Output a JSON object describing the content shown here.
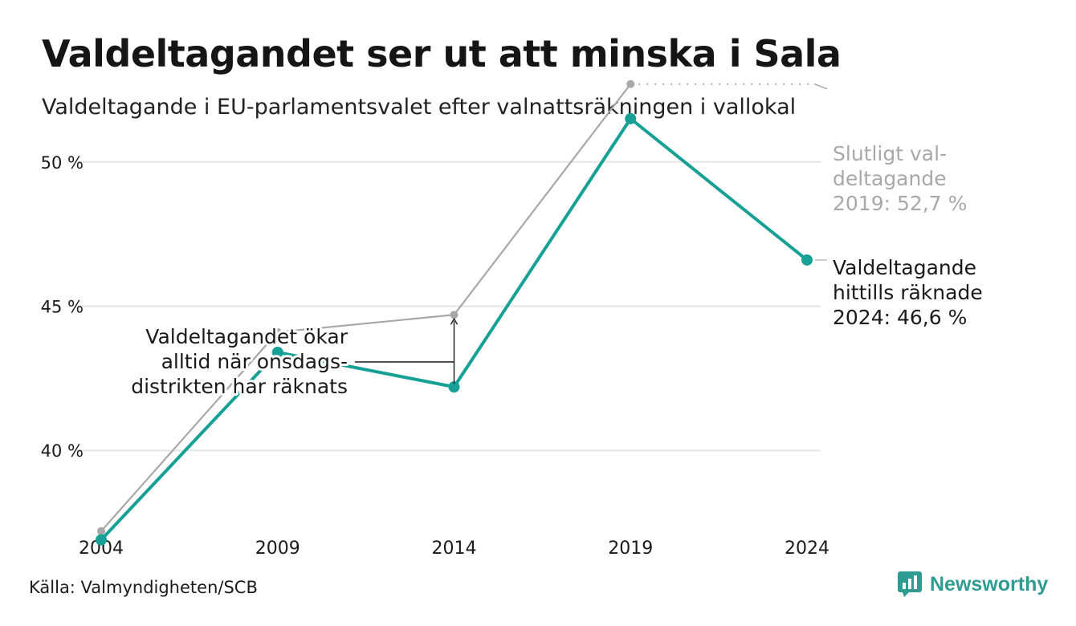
{
  "header": {
    "title": "Valdeltagandet ser ut att minska i Sala",
    "subtitle": "Valdeltagande i EU-parlamentsvalet efter valnattsräkningen i vallokal"
  },
  "footer": {
    "source": "Källa: Valmyndigheten/SCB",
    "brand": "Newsworthy"
  },
  "colors": {
    "valnatt": "#17a095",
    "slutligt": "#a8a8a8",
    "grid": "#e6e6e6",
    "brand": "#2f9c93"
  },
  "chart_data": {
    "type": "line",
    "x": [
      "2004",
      "2009",
      "2014",
      "2019",
      "2024"
    ],
    "ylim": [
      36.5,
      54
    ],
    "yticks": [
      40,
      45,
      50
    ],
    "ytick_labels": [
      "40 %",
      "45 %",
      "50 %"
    ],
    "grid": true,
    "series": [
      {
        "id": "slutligt",
        "values": [
          37.2,
          44.1,
          44.7,
          52.7,
          null
        ]
      },
      {
        "id": "valnatt",
        "values": [
          36.9,
          43.4,
          42.2,
          51.5,
          46.6
        ]
      }
    ],
    "annotations": {
      "slutligt_end": [
        "Slutligt val-",
        "deltagande",
        "2019: 52,7 %"
      ],
      "valnatt_end": [
        "Valdeltagande",
        "hittills räknade",
        "2024: 46,6 %"
      ],
      "onsdag": [
        "Valdeltagandet ökar",
        "alltid när onsdags-",
        "distrikten har räknats"
      ]
    }
  }
}
